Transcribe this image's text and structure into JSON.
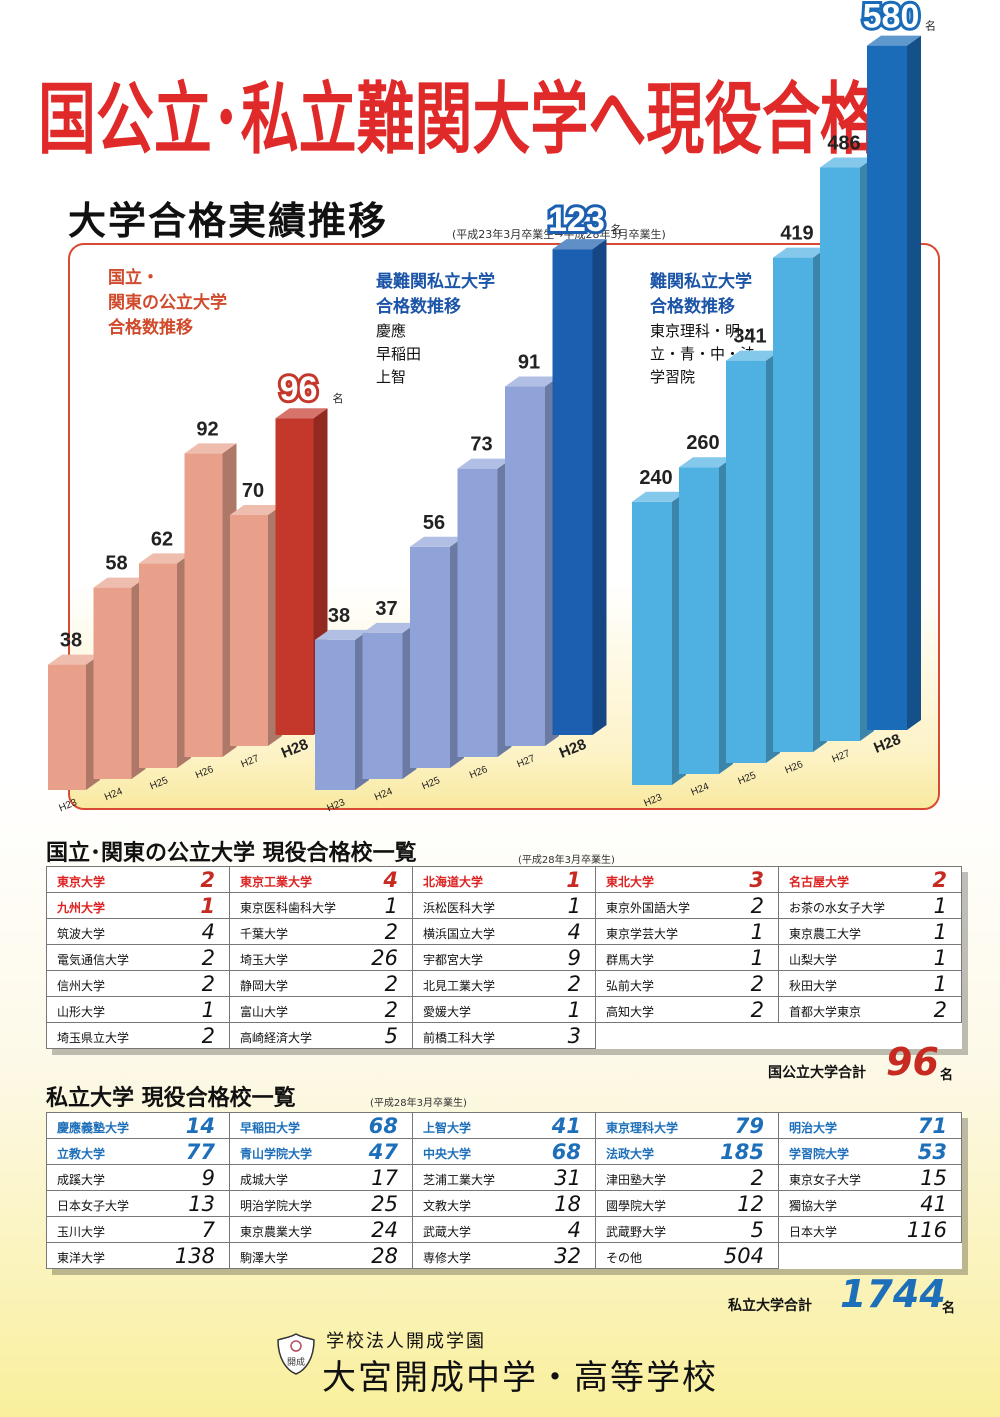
{
  "banner": {
    "text": "国公立･私立難関大学へ現役合格"
  },
  "section": {
    "title": "大学合格実績推移",
    "note": "(平成23年3月卒業生→平成28年3月卒業生)"
  },
  "chart_data": {
    "type": "bar",
    "categories": [
      "H23",
      "H24",
      "H25",
      "H26",
      "H27",
      "H28"
    ],
    "unit": "名",
    "groups": [
      {
        "title_lines": [
          "国立・",
          "関東の公立大学",
          "合格数推移"
        ],
        "sub_lines": [],
        "values": [
          38,
          58,
          62,
          92,
          70,
          96
        ],
        "color": "#e8a08a",
        "highlight_color": "#c4382c",
        "title_color": "#d04a2c"
      },
      {
        "title_lines": [
          "最難関私立大学",
          "合格数推移"
        ],
        "sub_lines": [
          "慶應",
          "早稲田",
          "上智"
        ],
        "values": [
          38,
          37,
          56,
          73,
          91,
          123
        ],
        "color": "#8fa3d8",
        "highlight_color": "#1c5fb0",
        "title_color": "#1c55a8"
      },
      {
        "title_lines": [
          "難関私立大学",
          "合格数推移"
        ],
        "sub_lines": [
          "東京理科・明・",
          "立・青・中・法・",
          "学習院"
        ],
        "values": [
          240,
          260,
          341,
          419,
          486,
          580
        ],
        "color": "#4fb0e2",
        "highlight_color": "#1a6cb8",
        "title_color": "#1c55a8"
      }
    ]
  },
  "public_table": {
    "title": "国立･関東の公立大学  現役合格校一覧",
    "note": "(平成28年3月卒業生)",
    "rows": [
      [
        {
          "name": "東京大学",
          "count": "2",
          "style": "red"
        },
        {
          "name": "東京工業大学",
          "count": "4",
          "style": "red"
        },
        {
          "name": "北海道大学",
          "count": "1",
          "style": "red"
        },
        {
          "name": "東北大学",
          "count": "3",
          "style": "red"
        },
        {
          "name": "名古屋大学",
          "count": "2",
          "style": "red"
        }
      ],
      [
        {
          "name": "九州大学",
          "count": "1",
          "style": "red"
        },
        {
          "name": "東京医科歯科大学",
          "count": "1"
        },
        {
          "name": "浜松医科大学",
          "count": "1"
        },
        {
          "name": "東京外国語大学",
          "count": "2"
        },
        {
          "name": "お茶の水女子大学",
          "count": "1"
        }
      ],
      [
        {
          "name": "筑波大学",
          "count": "4"
        },
        {
          "name": "千葉大学",
          "count": "2"
        },
        {
          "name": "横浜国立大学",
          "count": "4"
        },
        {
          "name": "東京学芸大学",
          "count": "1"
        },
        {
          "name": "東京農工大学",
          "count": "1"
        }
      ],
      [
        {
          "name": "電気通信大学",
          "count": "2"
        },
        {
          "name": "埼玉大学",
          "count": "26"
        },
        {
          "name": "宇都宮大学",
          "count": "9"
        },
        {
          "name": "群馬大学",
          "count": "1"
        },
        {
          "name": "山梨大学",
          "count": "1"
        }
      ],
      [
        {
          "name": "信州大学",
          "count": "2"
        },
        {
          "name": "静岡大学",
          "count": "2"
        },
        {
          "name": "北見工業大学",
          "count": "2"
        },
        {
          "name": "弘前大学",
          "count": "2"
        },
        {
          "name": "秋田大学",
          "count": "1"
        }
      ],
      [
        {
          "name": "山形大学",
          "count": "1"
        },
        {
          "name": "富山大学",
          "count": "2"
        },
        {
          "name": "愛媛大学",
          "count": "1"
        },
        {
          "name": "高知大学",
          "count": "2"
        },
        {
          "name": "首都大学東京",
          "count": "2"
        }
      ],
      [
        {
          "name": "埼玉県立大学",
          "count": "2"
        },
        {
          "name": "高崎経済大学",
          "count": "5"
        },
        {
          "name": "前橋工科大学",
          "count": "3"
        }
      ]
    ],
    "total_label": "国公立大学合計",
    "total_value": "96",
    "total_unit": "名"
  },
  "private_table": {
    "title": "私立大学  現役合格校一覧",
    "note": "(平成28年3月卒業生)",
    "rows": [
      [
        {
          "name": "慶應義塾大学",
          "count": "14",
          "style": "blue"
        },
        {
          "name": "早稲田大学",
          "count": "68",
          "style": "blue"
        },
        {
          "name": "上智大学",
          "count": "41",
          "style": "blue"
        },
        {
          "name": "東京理科大学",
          "count": "79",
          "style": "blue"
        },
        {
          "name": "明治大学",
          "count": "71",
          "style": "blue"
        }
      ],
      [
        {
          "name": "立教大学",
          "count": "77",
          "style": "blue"
        },
        {
          "name": "青山学院大学",
          "count": "47",
          "style": "blue"
        },
        {
          "name": "中央大学",
          "count": "68",
          "style": "blue"
        },
        {
          "name": "法政大学",
          "count": "185",
          "style": "blue"
        },
        {
          "name": "学習院大学",
          "count": "53",
          "style": "blue"
        }
      ],
      [
        {
          "name": "成蹊大学",
          "count": "9"
        },
        {
          "name": "成城大学",
          "count": "17"
        },
        {
          "name": "芝浦工業大学",
          "count": "31"
        },
        {
          "name": "津田塾大学",
          "count": "2"
        },
        {
          "name": "東京女子大学",
          "count": "15"
        }
      ],
      [
        {
          "name": "日本女子大学",
          "count": "13"
        },
        {
          "name": "明治学院大学",
          "count": "25"
        },
        {
          "name": "文教大学",
          "count": "18"
        },
        {
          "name": "國學院大学",
          "count": "12"
        },
        {
          "name": "獨協大学",
          "count": "41"
        }
      ],
      [
        {
          "name": "玉川大学",
          "count": "7"
        },
        {
          "name": "東京農業大学",
          "count": "24"
        },
        {
          "name": "武蔵大学",
          "count": "4"
        },
        {
          "name": "武蔵野大学",
          "count": "5"
        },
        {
          "name": "日本大学",
          "count": "116"
        }
      ],
      [
        {
          "name": "東洋大学",
          "count": "138"
        },
        {
          "name": "駒澤大学",
          "count": "28"
        },
        {
          "name": "専修大学",
          "count": "32"
        },
        {
          "name": "その他",
          "count": "504"
        }
      ]
    ],
    "total_label": "私立大学合計",
    "total_value": "1744",
    "total_unit": "名"
  },
  "school": {
    "crest_text": "開成",
    "corporation": "学校法人開成学園",
    "name": "大宮開成中学・高等学校"
  }
}
